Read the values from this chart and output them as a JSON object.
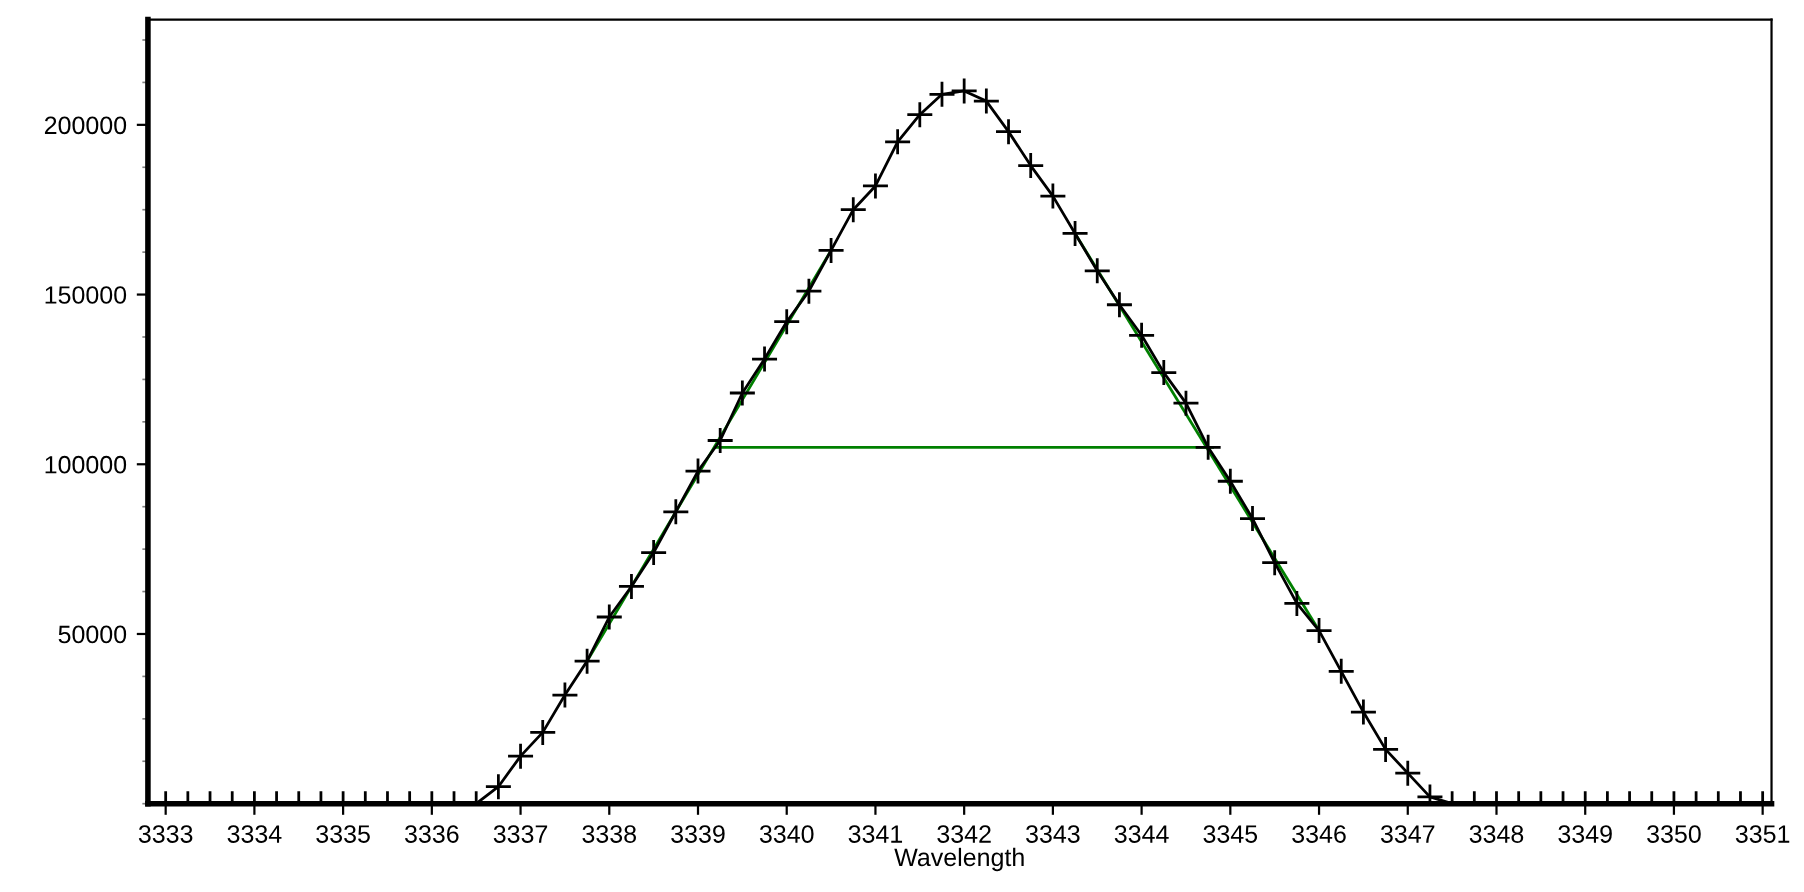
{
  "chart_data": {
    "type": "line",
    "xlabel": "Wavelength",
    "xlim": [
      3332.8,
      3351.1
    ],
    "xticks": [
      3333,
      3334,
      3335,
      3336,
      3337,
      3338,
      3339,
      3340,
      3341,
      3342,
      3343,
      3344,
      3345,
      3346,
      3347,
      3348,
      3349,
      3350,
      3351
    ],
    "ylim": [
      0,
      231000
    ],
    "yticks": [
      50000,
      100000,
      150000,
      200000
    ],
    "grid": false,
    "legend": false,
    "series": [
      {
        "color": "#000000",
        "marker": "cross",
        "line_style": "solid",
        "x": [
          3333,
          3333.25,
          3333.5,
          3333.75,
          3334,
          3334.25,
          3334.5,
          3334.75,
          3335,
          3335.25,
          3335.5,
          3335.75,
          3336,
          3336.25,
          3336.5,
          3336.75,
          3337,
          3337.25,
          3337.5,
          3337.75,
          3338,
          3338.25,
          3338.5,
          3338.75,
          3339,
          3339.25,
          3339.5,
          3339.75,
          3340,
          3340.25,
          3340.5,
          3340.75,
          3341,
          3341.25,
          3341.5,
          3341.75,
          3342,
          3342.25,
          3342.5,
          3342.75,
          3343,
          3343.25,
          3343.5,
          3343.75,
          3344,
          3344.25,
          3344.5,
          3344.75,
          3345,
          3345.25,
          3345.5,
          3345.75,
          3346,
          3346.25,
          3346.5,
          3346.75,
          3347,
          3347.25,
          3347.5,
          3347.75,
          3348,
          3348.25,
          3348.5,
          3348.75,
          3349,
          3349.25,
          3349.5,
          3349.75,
          3350,
          3350.25,
          3350.5,
          3350.75,
          3351
        ],
        "values": [
          0,
          0,
          0,
          0,
          0,
          0,
          0,
          0,
          0,
          0,
          0,
          0,
          0,
          0,
          0,
          5000,
          14000,
          21000,
          32000,
          42000,
          55000,
          64000,
          74000,
          86000,
          98000,
          107000,
          121000,
          131000,
          142000,
          151000,
          163000,
          175000,
          182000,
          195000,
          203000,
          209000,
          210000,
          207000,
          198000,
          188000,
          179000,
          168000,
          157000,
          147000,
          138000,
          127000,
          118000,
          105000,
          95000,
          84000,
          71000,
          59000,
          51000,
          39000,
          27000,
          16000,
          9000,
          2000,
          0,
          0,
          0,
          0,
          0,
          0,
          0,
          0,
          0,
          0,
          0,
          0,
          0,
          0,
          0
        ]
      },
      {
        "color": "#008000",
        "marker": "none",
        "line_style": "solid",
        "x": [
          3337.75,
          3340.5
        ],
        "values": [
          42000,
          163000
        ]
      },
      {
        "color": "#008000",
        "marker": "none",
        "line_style": "solid",
        "x": [
          3343.25,
          3346
        ],
        "values": [
          168000,
          51000
        ]
      },
      {
        "color": "#008000",
        "marker": "none",
        "line_style": "solid",
        "x": [
          3339.2,
          3344.8
        ],
        "values": [
          105000,
          105000
        ]
      }
    ]
  }
}
